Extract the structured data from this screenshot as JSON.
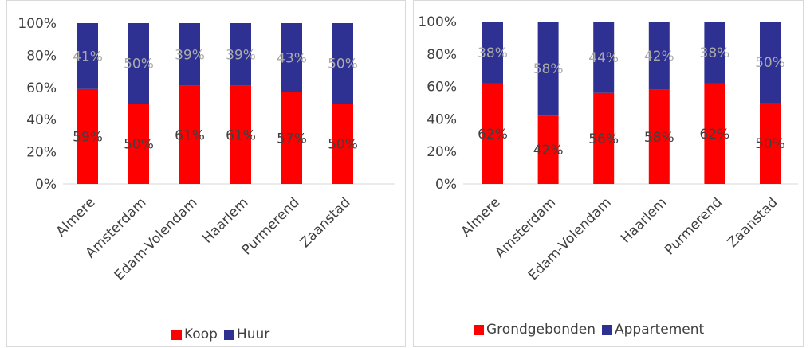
{
  "chart_data": [
    {
      "type": "bar",
      "stacked": true,
      "categories": [
        "Almere",
        "Amsterdam",
        "Edam-Volendam",
        "Haarlem",
        "Purmerend",
        "Zaanstad"
      ],
      "series": [
        {
          "name": "Koop",
          "color": "#ff0000",
          "values": [
            59,
            50,
            61,
            61,
            57,
            50
          ],
          "labels": [
            "59%",
            "50%",
            "61%",
            "61%",
            "57%",
            "50%"
          ]
        },
        {
          "name": "Huur",
          "color": "#2e3192",
          "values": [
            41,
            50,
            39,
            39,
            43,
            50
          ],
          "labels": [
            "41%",
            "50%",
            "39%",
            "39%",
            "43%",
            "50%"
          ]
        }
      ],
      "yticks": [
        "0%",
        "20%",
        "40%",
        "60%",
        "80%",
        "100%"
      ],
      "ylim": [
        0,
        100
      ],
      "legend_position": "bottom"
    },
    {
      "type": "bar",
      "stacked": true,
      "categories": [
        "Almere",
        "Amsterdam",
        "Edam-Volendam",
        "Haarlem",
        "Purmerend",
        "Zaanstad"
      ],
      "series": [
        {
          "name": "Grondgebonden",
          "color": "#ff0000",
          "values": [
            62,
            42,
            56,
            58,
            62,
            50
          ],
          "labels": [
            "62%",
            "42%",
            "56%",
            "58%",
            "62%",
            "50%"
          ]
        },
        {
          "name": "Appartement",
          "color": "#2e3192",
          "values": [
            38,
            58,
            44,
            42,
            38,
            50
          ],
          "labels": [
            "38%",
            "58%",
            "44%",
            "42%",
            "38%",
            "50%"
          ]
        }
      ],
      "yticks": [
        "0%",
        "20%",
        "40%",
        "60%",
        "80%",
        "100%"
      ],
      "ylim": [
        0,
        100
      ],
      "legend_position": "bottom"
    }
  ]
}
